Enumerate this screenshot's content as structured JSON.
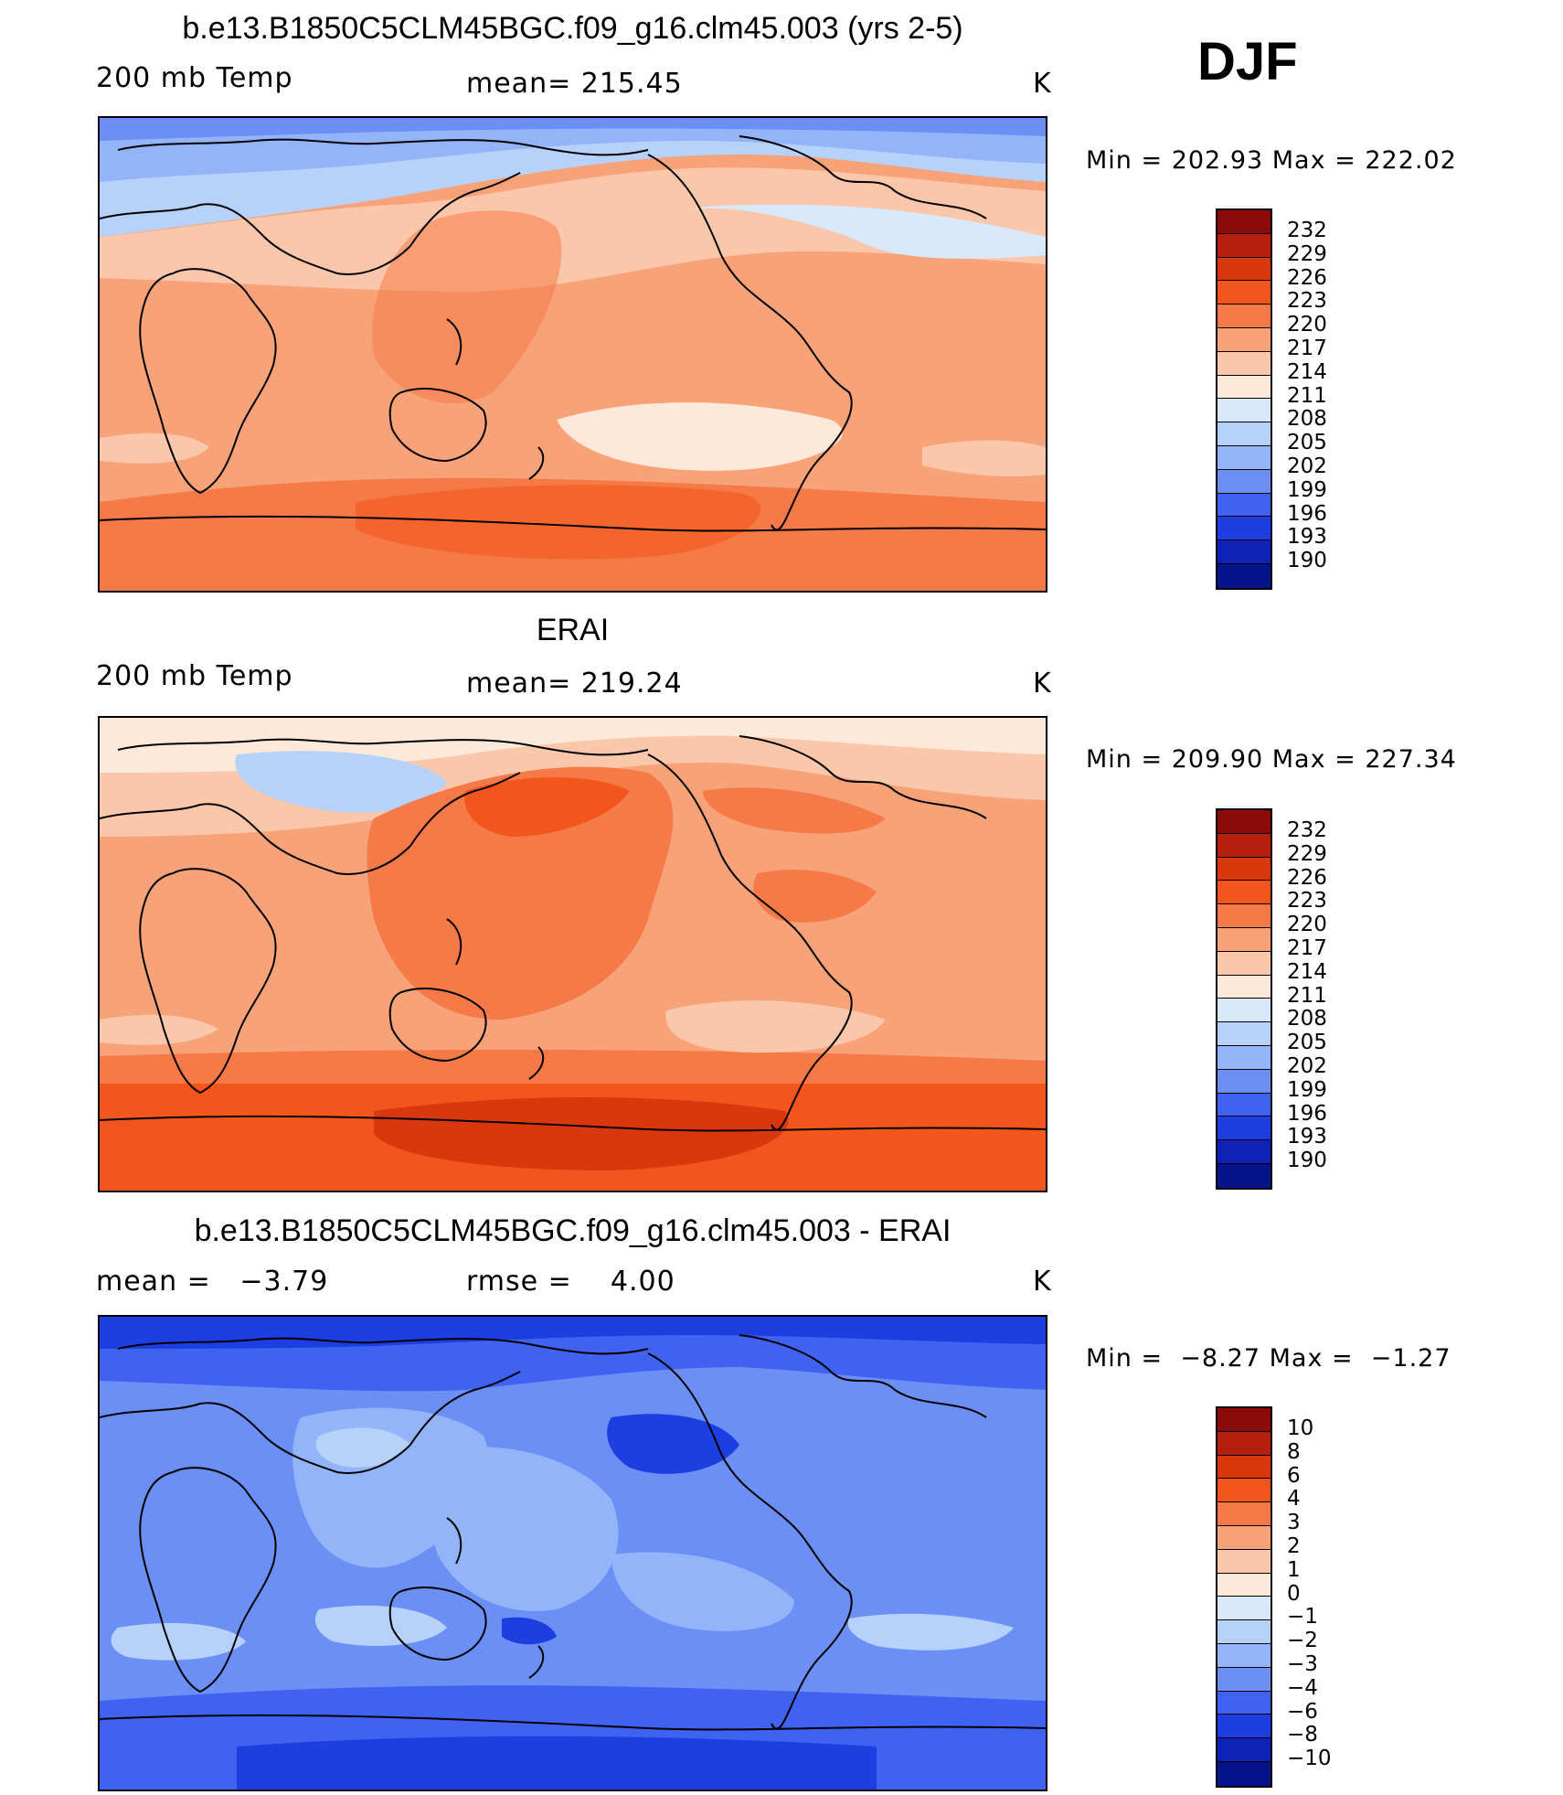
{
  "season": "DJF",
  "panels": [
    {
      "title": "b.e13.B1850C5CLM45BGC.f09_g16.clm45.003 (yrs 2-5)",
      "left_label": "200 mb Temp",
      "center_label": "mean= 215.45",
      "units": "K",
      "min_max": "Min = 202.93 Max = 222.02",
      "colorbar_ticks": [
        "232",
        "229",
        "226",
        "223",
        "220",
        "217",
        "214",
        "211",
        "208",
        "205",
        "202",
        "199",
        "196",
        "193",
        "190"
      ]
    },
    {
      "title": "ERAI",
      "left_label": "200 mb Temp",
      "center_label": "mean= 219.24",
      "units": "K",
      "min_max": "Min = 209.90 Max = 227.34",
      "colorbar_ticks": [
        "232",
        "229",
        "226",
        "223",
        "220",
        "217",
        "214",
        "211",
        "208",
        "205",
        "202",
        "199",
        "196",
        "193",
        "190"
      ]
    },
    {
      "title": "b.e13.B1850C5CLM45BGC.f09_g16.clm45.003 - ERAI",
      "left_label": "mean =   −3.79",
      "center_label": "rmse =    4.00",
      "units": "K",
      "min_max": "Min =  −8.27 Max =  −1.27",
      "colorbar_ticks": [
        "10",
        "8",
        "6",
        "4",
        "3",
        "2",
        "1",
        "0",
        "−1",
        "−2",
        "−3",
        "−4",
        "−6",
        "−8",
        "−10"
      ]
    }
  ],
  "colors": {
    "palette": [
      "#8b0a0a",
      "#b5200e",
      "#d9380f",
      "#f2561d",
      "#f57a48",
      "#f8a27a",
      "#fbc7ab",
      "#fde9d9",
      "#d8e9fb",
      "#b6d1fa",
      "#93b4f9",
      "#6c8ff5",
      "#3f62f0",
      "#1d3ee0",
      "#0e23b6",
      "#06148a"
    ],
    "panel_fills": [
      {
        "base": "#f8a27a",
        "north": "#93b4f9",
        "north2": "#b6d1fa",
        "mid": "#fbc7ab",
        "warm": "#f57a48",
        "pale": "#fde9d9"
      },
      {
        "base": "#f8a27a",
        "north": "#b6d1fa",
        "north2": "#fde9d9",
        "mid": "#fbc7ab",
        "warm": "#f57a48",
        "south": "#f2561d",
        "deep": "#d9380f"
      },
      {
        "base": "#6c8ff5",
        "north": "#3f62f0",
        "north2": "#1d3ee0",
        "light": "#93b4f9",
        "pale": "#b6d1fa"
      }
    ]
  }
}
